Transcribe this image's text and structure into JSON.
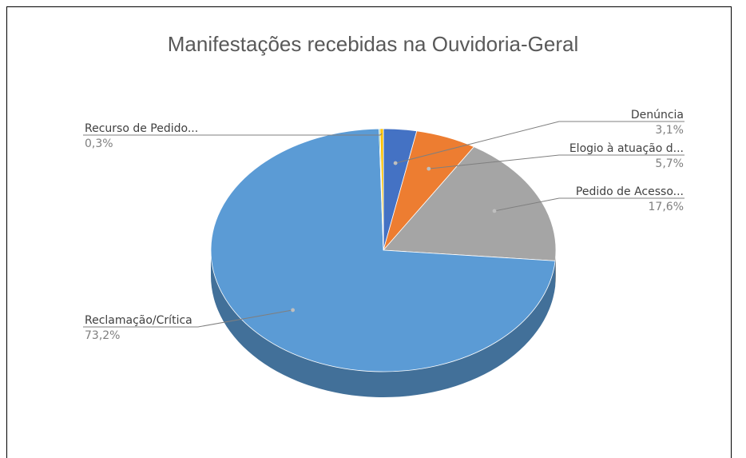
{
  "chart_data": {
    "type": "pie",
    "title": "Manifestações recebidas na Ouvidoria-Geral",
    "slices": [
      {
        "name": "Denúncia",
        "value": 3.1,
        "label": "3,1%",
        "color": "#4472c4"
      },
      {
        "name": "Elogio à atuação d...",
        "value": 5.7,
        "label": "5,7%",
        "color": "#ed7d31"
      },
      {
        "name": "Pedido de Acesso...",
        "value": 17.6,
        "label": "17,6%",
        "color": "#a5a5a5"
      },
      {
        "name": "Reclamação/Crítica",
        "value": 73.2,
        "label": "73,2%",
        "color": "#5b9bd5"
      },
      {
        "name": "",
        "value": 0.1,
        "label": "",
        "color": "#70ad47"
      },
      {
        "name": "Recurso de Pedido...",
        "value": 0.3,
        "label": "0,3%",
        "color": "#ffc000"
      }
    ],
    "legend": "none",
    "style": "3d"
  }
}
